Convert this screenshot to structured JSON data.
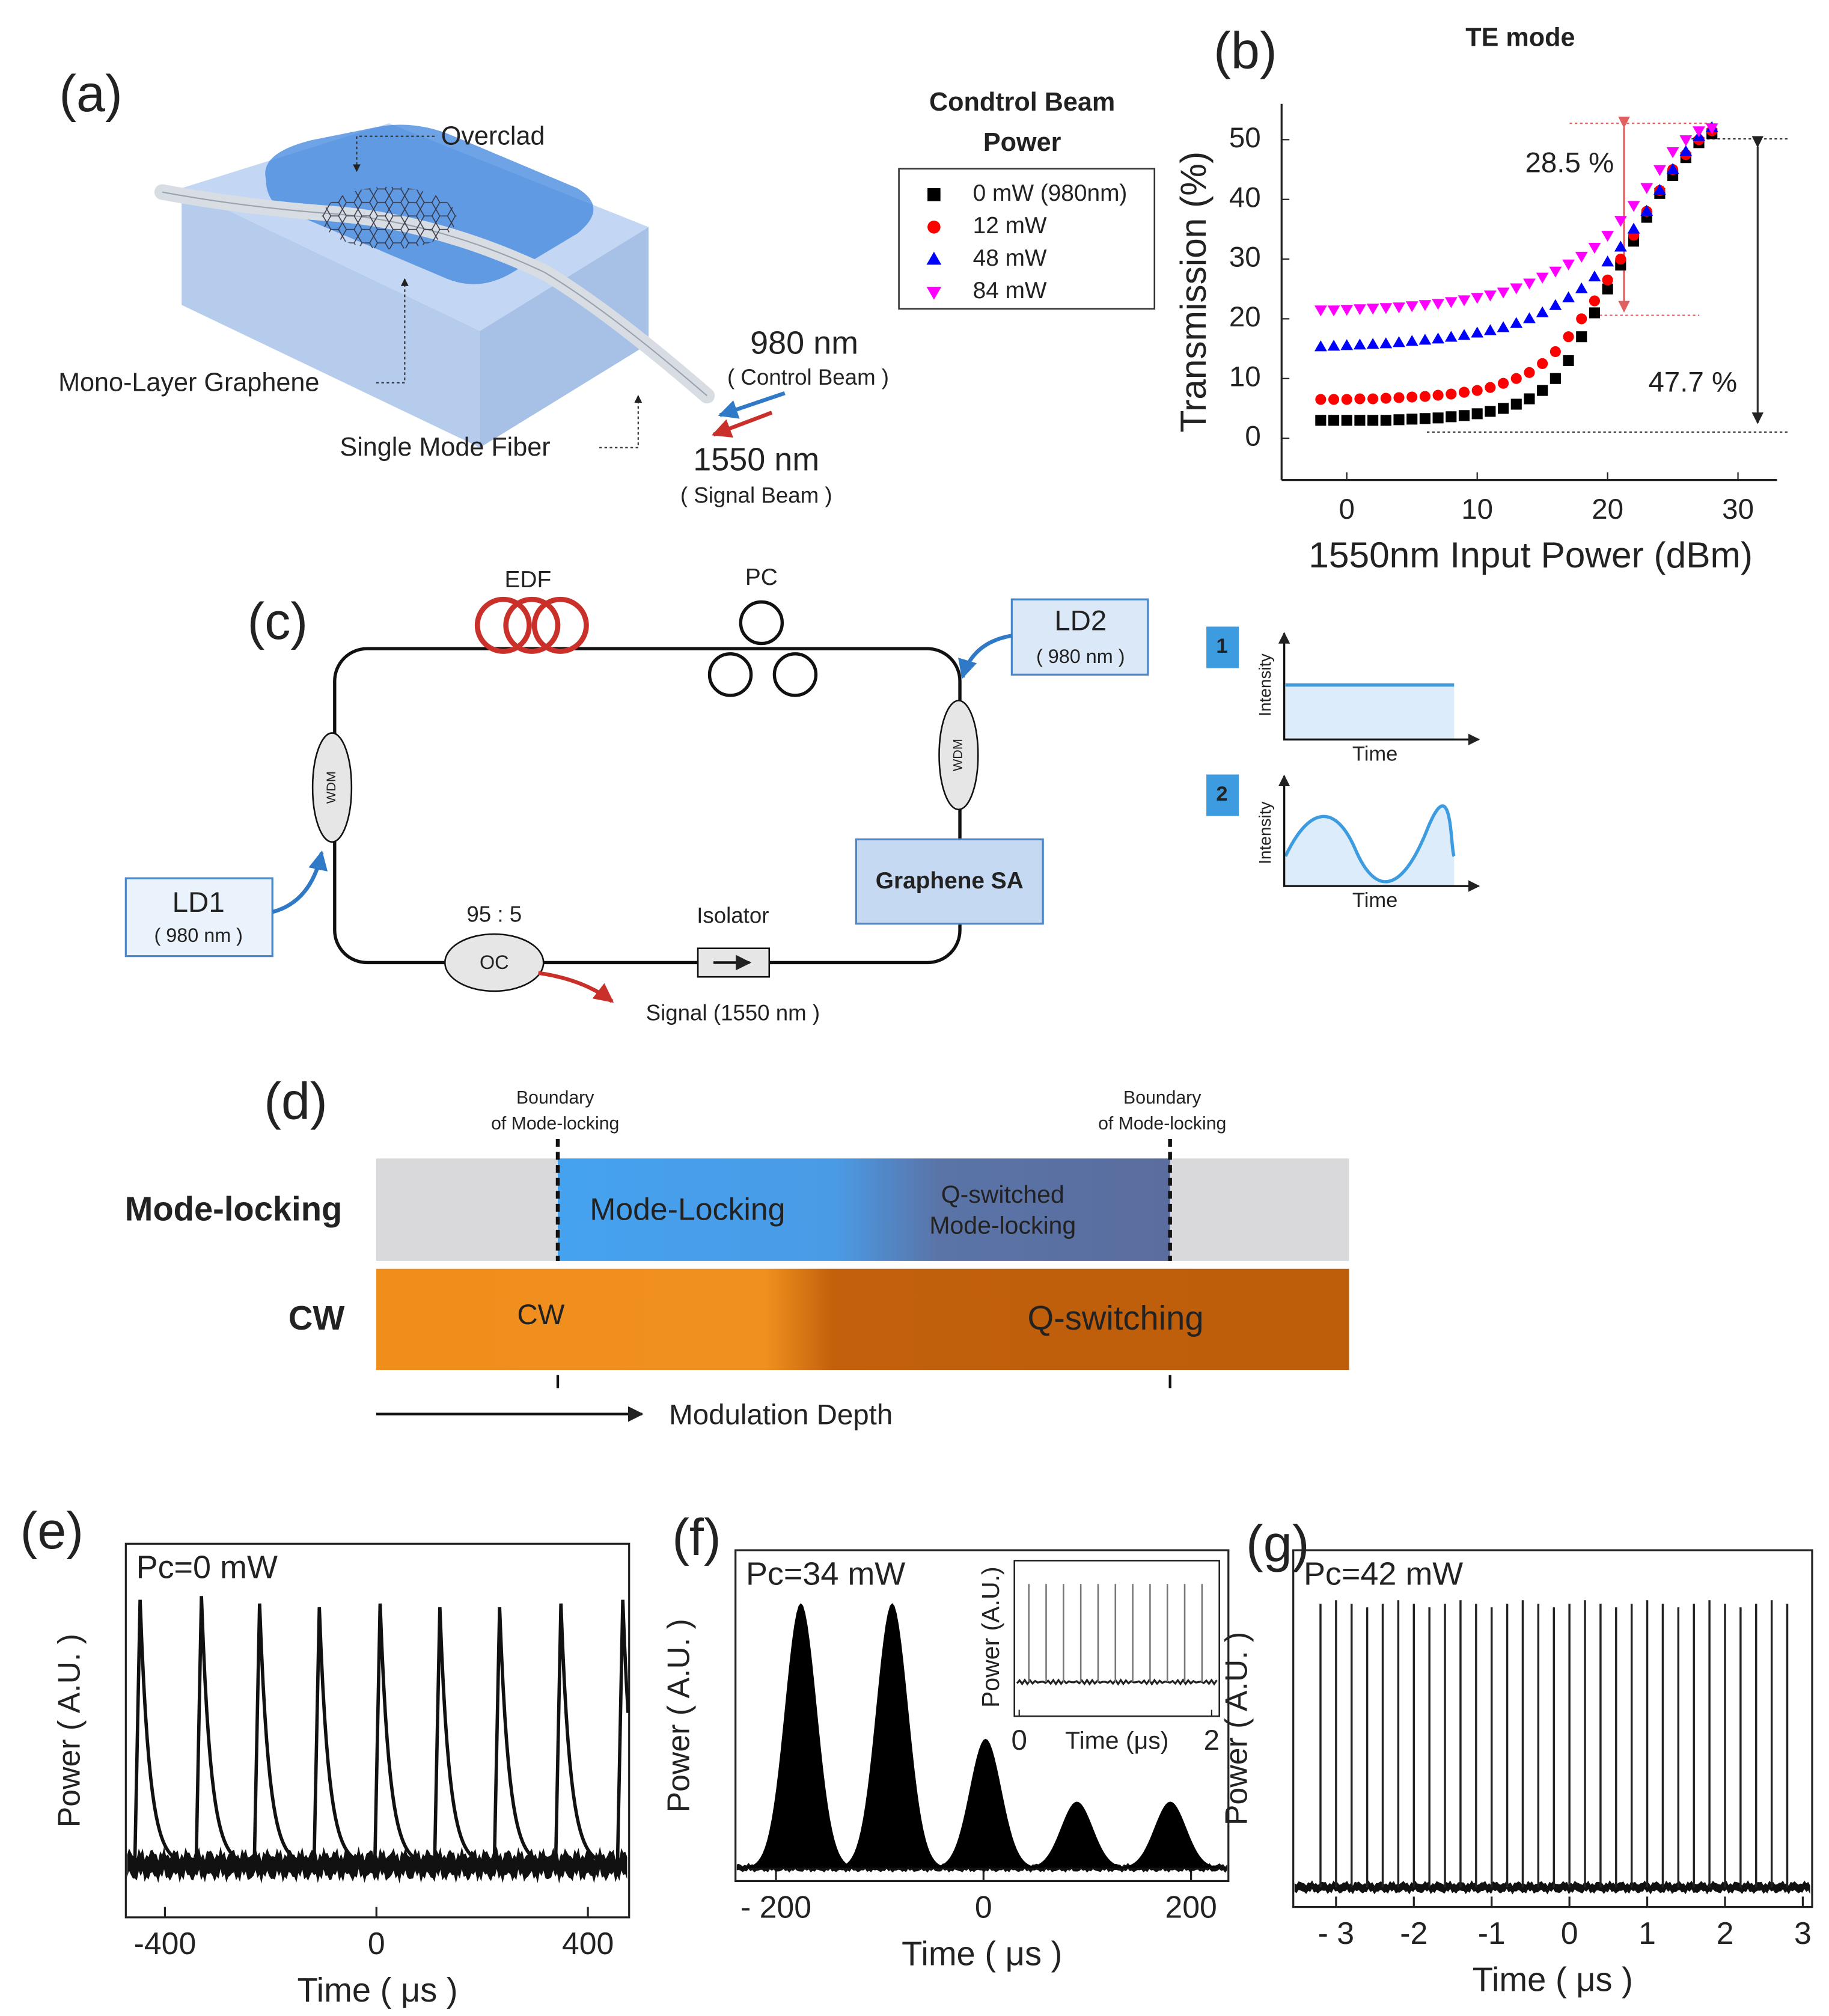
{
  "figure": {
    "panel_labels": [
      "(a)",
      "(b)",
      "(c)",
      "(d)",
      "(e)",
      "(f)",
      "(g)"
    ]
  },
  "device": {
    "overclad": "Overclad",
    "graphene": "Mono-Layer Graphene",
    "fiber": "Single Mode Fiber",
    "control_wavelength": "980 nm",
    "control_beam": "( Control Beam )",
    "signal_wavelength": "1550 nm",
    "signal_beam": "( Signal Beam )"
  },
  "laser": {
    "edf": "EDF",
    "pc": "PC",
    "ld2": "LD2",
    "ld2_wavelength": "( 980 nm )",
    "wdm": [
      "WDM",
      "WDM"
    ],
    "sa": "Graphene SA",
    "ld1": "LD1",
    "ld1_wavelength": "( 980 nm )",
    "ratio": "95 : 5",
    "oc": "OC",
    "isolator": "Isolator",
    "signal": "Signal (1550 nm )",
    "insets": [
      {
        "index": "1",
        "ylabel": "Intensity",
        "xlabel": "Time"
      },
      {
        "index": "2",
        "ylabel": "Intensity",
        "xlabel": "Time"
      }
    ]
  },
  "regimes": {
    "boundary_left": [
      "Boundary",
      "of Mode-locking"
    ],
    "boundary_right": [
      "Boundary",
      "of Mode-locking"
    ],
    "row_labels": [
      "Mode-locking",
      "CW"
    ],
    "mode_locking": "Mode-Locking",
    "qsml": [
      "Q-switched",
      "Mode-locking"
    ],
    "cw": "CW",
    "q_switching": "Q-switching",
    "axis": "Modulation Depth"
  },
  "chart_data": [
    {
      "type": "scatter",
      "title": "TE mode",
      "legend_title": [
        "Condtrol Beam",
        "Power"
      ],
      "xlabel": "1550nm Input Power (dBm)",
      "ylabel": "Transmission (%)",
      "x": [
        -2,
        -1,
        0,
        1,
        2,
        3,
        4,
        5,
        6,
        7,
        8,
        9,
        10,
        11,
        12,
        13,
        14,
        15,
        16,
        17,
        18,
        19,
        20,
        21,
        22,
        23,
        24,
        25,
        26,
        27,
        28
      ],
      "series": [
        {
          "name": "0 mW (980nm)",
          "color": "#000000",
          "marker": "square",
          "values": [
            3,
            3,
            3,
            3,
            3,
            3,
            3.1,
            3.2,
            3.3,
            3.4,
            3.6,
            3.8,
            4.1,
            4.5,
            5,
            5.7,
            6.6,
            8,
            10,
            13,
            17,
            21,
            25,
            29,
            33,
            37,
            41,
            44,
            47,
            49.5,
            51
          ]
        },
        {
          "name": "12 mW",
          "color": "#ff0000",
          "marker": "circle",
          "values": [
            6.5,
            6.5,
            6.5,
            6.6,
            6.6,
            6.7,
            6.8,
            6.9,
            7,
            7.2,
            7.4,
            7.7,
            8,
            8.5,
            9.2,
            10,
            11,
            12.5,
            14.5,
            17,
            20,
            23,
            26.5,
            30,
            34,
            38,
            41.5,
            45,
            47.5,
            50,
            51.5
          ]
        },
        {
          "name": "48 mW",
          "color": "#0000ff",
          "marker": "triangle-up",
          "values": [
            15.3,
            15.4,
            15.5,
            15.6,
            15.7,
            15.8,
            16,
            16.2,
            16.4,
            16.6,
            16.9,
            17.2,
            17.6,
            18,
            18.5,
            19.2,
            20,
            21,
            22.2,
            23.5,
            25,
            27,
            29.5,
            32,
            35,
            38,
            41.5,
            45,
            48,
            50.5,
            52
          ]
        },
        {
          "name": "84 mW",
          "color": "#ff00ff",
          "marker": "triangle-down",
          "values": [
            21.5,
            21.5,
            21.6,
            21.7,
            21.8,
            21.9,
            22,
            22.2,
            22.4,
            22.6,
            22.9,
            23.2,
            23.6,
            24,
            24.5,
            25.2,
            26,
            27,
            28,
            29.2,
            30.5,
            32,
            34,
            36.5,
            39,
            42,
            45,
            48,
            50,
            51.5,
            52
          ]
        }
      ],
      "xlim": [
        -5,
        33
      ],
      "ylim": [
        -7,
        56
      ],
      "xticks": [
        0,
        10,
        20,
        30
      ],
      "yticks": [
        0,
        10,
        20,
        30,
        40,
        50
      ],
      "annotations": [
        "28.5 %",
        "47.7 %"
      ]
    },
    {
      "type": "trace",
      "shape": "decay",
      "label": "Pc=0 mW",
      "xlabel": "Time ( μs )",
      "ylabel": "Power ( A.U. )",
      "x": [
        -447,
        -331,
        -221,
        -108,
        7,
        120,
        233,
        349,
        466
      ],
      "values": [
        0.85,
        0.86,
        0.84,
        0.83,
        0.84,
        0.83,
        0.83,
        0.84,
        0.85
      ],
      "baseline": 0.14,
      "xlim": [
        -474,
        478
      ],
      "ylim": [
        0,
        1
      ],
      "xticks": [
        -400,
        0,
        400
      ]
    },
    {
      "type": "trace",
      "shape": "gaussian",
      "label": "Pc=34 mW",
      "xlabel": "Time ( μs )",
      "ylabel": "Power ( A.U. )",
      "x": [
        -176,
        -88,
        2,
        90,
        180
      ],
      "values": [
        0.84,
        0.84,
        0.43,
        0.24,
        0.24
      ],
      "baseline": 0.04,
      "xlim": [
        -239,
        236
      ],
      "ylim": [
        0,
        1
      ],
      "xticks": [
        {
          "value": -200,
          "label": "- 200"
        },
        0,
        200
      ],
      "inset": {
        "xlabel": "Time (μs)",
        "ylabel": "Power (A.U.)",
        "x": [
          0.1,
          0.28,
          0.46,
          0.64,
          0.82,
          1,
          1.18,
          1.36,
          1.54,
          1.72,
          1.9
        ],
        "values": [
          0.85,
          0.85,
          0.85,
          0.85,
          0.85,
          0.85,
          0.85,
          0.85,
          0.85,
          0.85,
          0.85
        ],
        "baseline": 0.22,
        "xlim": [
          -0.05,
          2.08
        ],
        "ylim": [
          0,
          1
        ],
        "xticks": [
          0,
          2
        ]
      }
    },
    {
      "type": "trace",
      "shape": "spike",
      "label": "Pc=42 mW",
      "xlabel": "Time ( μs )",
      "ylabel": "Power ( A.U. )",
      "x": [
        -3.2,
        -3,
        -2.8,
        -2.6,
        -2.4,
        -2.2,
        -2,
        -1.8,
        -1.6,
        -1.4,
        -1.2,
        -1,
        -0.8,
        -0.6,
        -0.4,
        -0.2,
        0,
        0.2,
        0.4,
        0.6,
        0.8,
        1,
        1.2,
        1.4,
        1.6,
        1.8,
        2,
        2.2,
        2.4,
        2.6,
        2.8
      ],
      "values": [
        0.85,
        0.86,
        0.85,
        0.84,
        0.85,
        0.86,
        0.85,
        0.84,
        0.85,
        0.86,
        0.85,
        0.84,
        0.85,
        0.86,
        0.85,
        0.84,
        0.85,
        0.86,
        0.85,
        0.84,
        0.85,
        0.86,
        0.85,
        0.84,
        0.85,
        0.86,
        0.85,
        0.84,
        0.85,
        0.86,
        0.85
      ],
      "baseline": 0.055,
      "xlim": [
        -3.55,
        3.12
      ],
      "ylim": [
        0,
        1
      ],
      "xticks": [
        {
          "value": -3,
          "label": "- 3"
        },
        -2,
        -1,
        0,
        1,
        2,
        3
      ]
    }
  ]
}
